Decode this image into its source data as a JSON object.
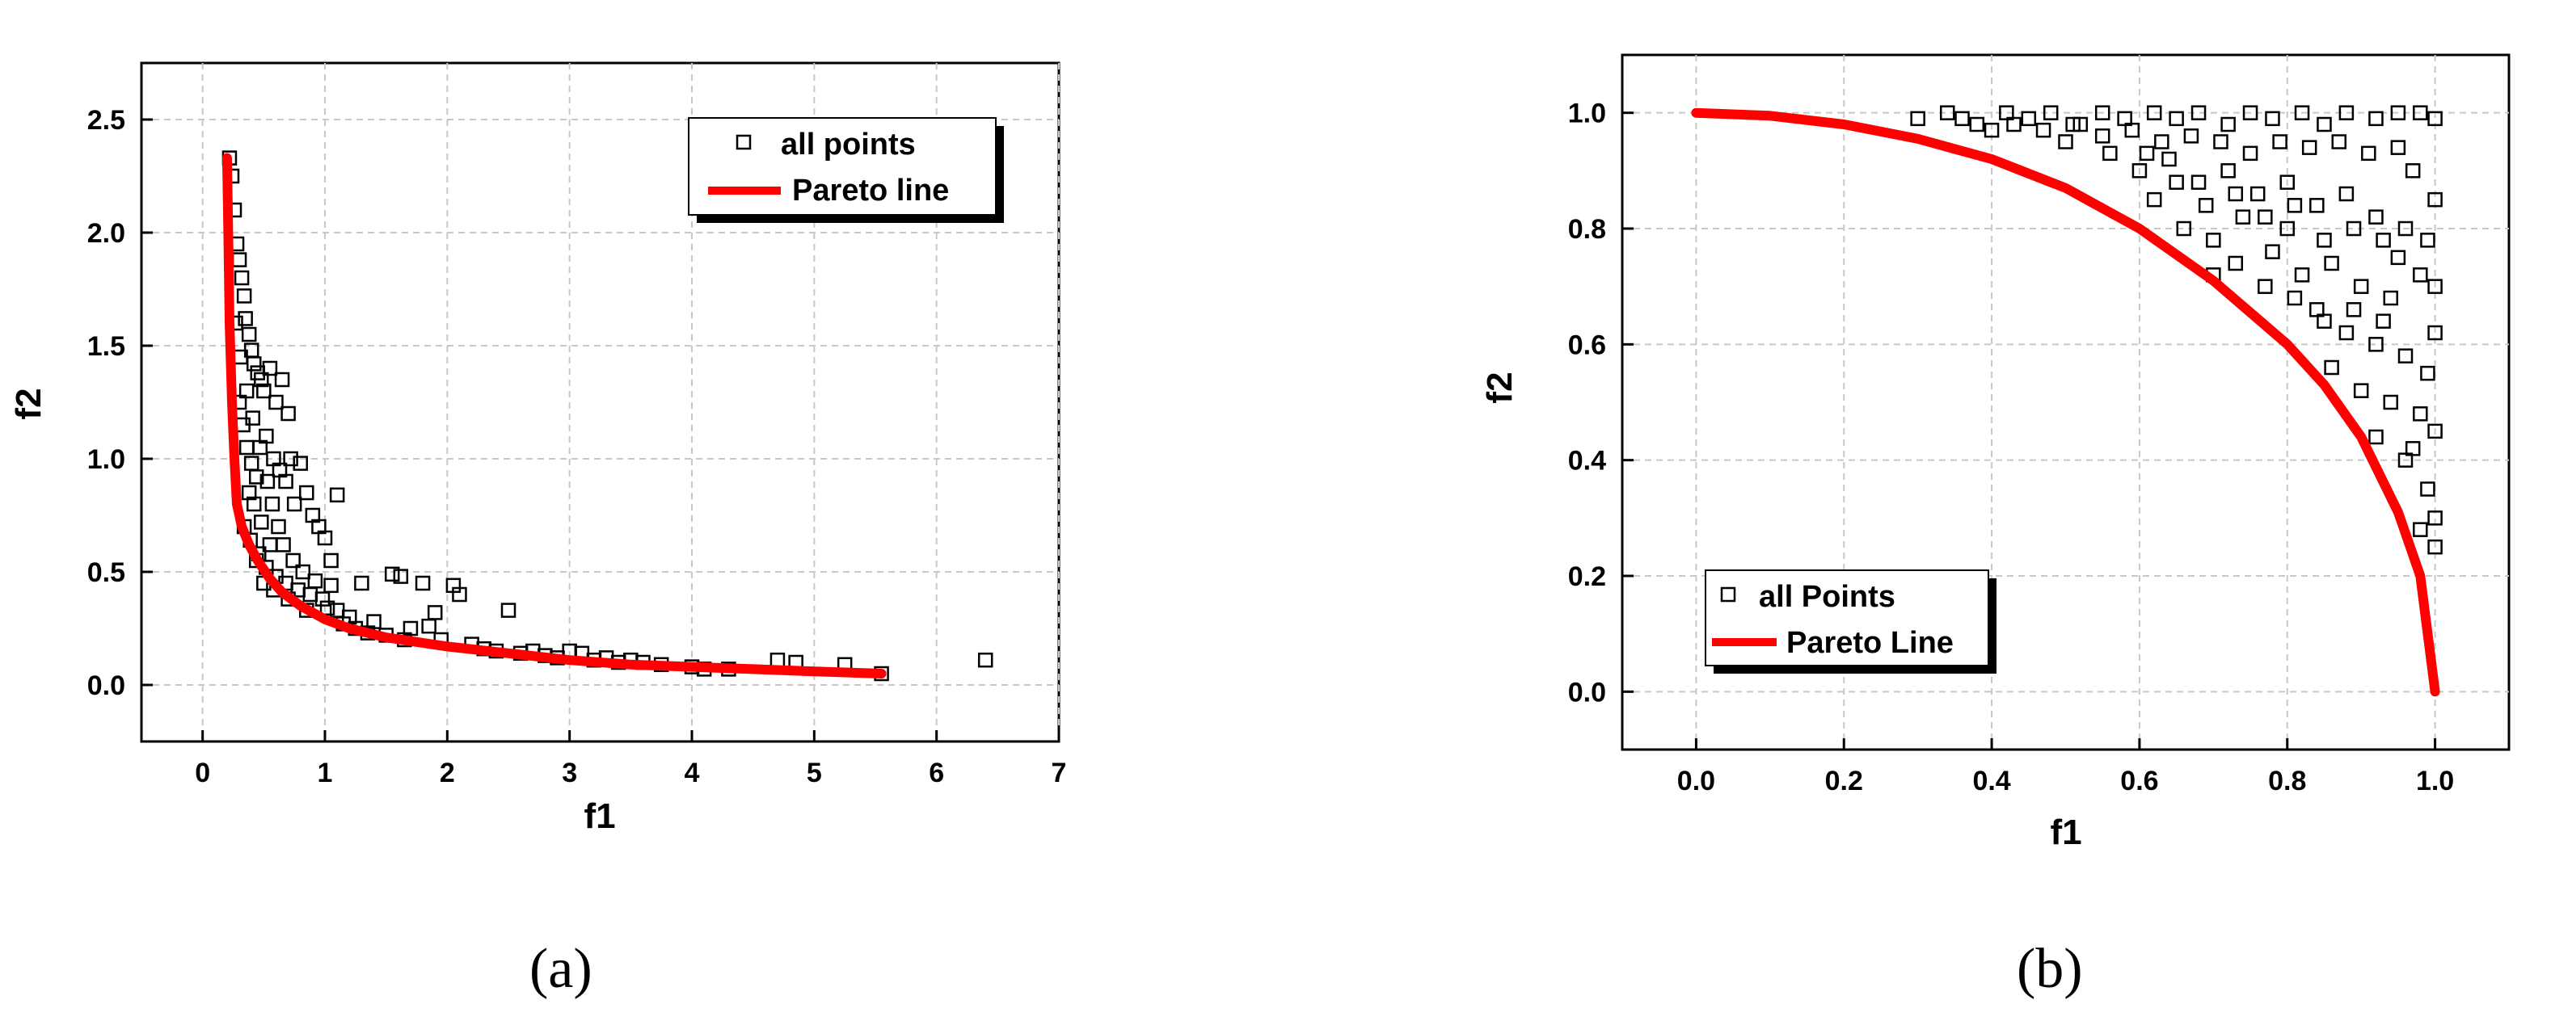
{
  "figure": {
    "label_a": "(a)",
    "label_b": "(b)"
  },
  "colors": {
    "points_stroke": "#000000",
    "pareto_line": "#ff0000",
    "grid": "#c8c8c8"
  },
  "chart_data": [
    {
      "type": "scatter",
      "panel": "a",
      "xlabel": "f1",
      "ylabel": "f2",
      "xlim": [
        -0.5,
        7
      ],
      "ylim": [
        -0.25,
        2.75
      ],
      "xticks": [
        0,
        1,
        2,
        3,
        4,
        5,
        6,
        7
      ],
      "yticks": [
        0.0,
        0.5,
        1.0,
        1.5,
        2.0,
        2.5
      ],
      "xtick_labels": [
        "0",
        "1",
        "2",
        "3",
        "4",
        "5",
        "6",
        "7"
      ],
      "ytick_labels": [
        "0.0",
        "0.5",
        "1.0",
        "1.5",
        "2.0",
        "2.5"
      ],
      "grid": true,
      "legend": {
        "position": "top-right",
        "entries": [
          "all points",
          "Pareto line"
        ]
      },
      "series": [
        {
          "name": "all points",
          "marker": "open-square",
          "points": [
            [
              0.22,
              2.33
            ],
            [
              0.24,
              2.25
            ],
            [
              0.26,
              2.1
            ],
            [
              0.28,
              1.95
            ],
            [
              0.3,
              1.88
            ],
            [
              0.32,
              1.8
            ],
            [
              0.34,
              1.72
            ],
            [
              0.35,
              1.62
            ],
            [
              0.38,
              1.55
            ],
            [
              0.4,
              1.48
            ],
            [
              0.42,
              1.42
            ],
            [
              0.45,
              1.38
            ],
            [
              0.48,
              1.35
            ],
            [
              0.3,
              1.25
            ],
            [
              0.33,
              1.15
            ],
            [
              0.36,
              1.05
            ],
            [
              0.4,
              0.98
            ],
            [
              0.44,
              0.92
            ],
            [
              0.5,
              1.3
            ],
            [
              0.55,
              1.4
            ],
            [
              0.6,
              1.25
            ],
            [
              0.65,
              1.35
            ],
            [
              0.7,
              1.2
            ],
            [
              0.52,
              1.1
            ],
            [
              0.58,
              1.0
            ],
            [
              0.63,
              0.95
            ],
            [
              0.68,
              0.9
            ],
            [
              0.72,
              1.0
            ],
            [
              0.8,
              0.98
            ],
            [
              0.85,
              0.85
            ],
            [
              0.9,
              0.75
            ],
            [
              0.95,
              0.7
            ],
            [
              1.0,
              0.65
            ],
            [
              1.1,
              0.84
            ],
            [
              1.05,
              0.55
            ],
            [
              0.75,
              0.8
            ],
            [
              0.62,
              0.7
            ],
            [
              0.55,
              0.62
            ],
            [
              0.48,
              0.72
            ],
            [
              0.42,
              0.8
            ],
            [
              0.38,
              0.85
            ],
            [
              0.46,
              0.58
            ],
            [
              0.52,
              0.52
            ],
            [
              0.6,
              0.48
            ],
            [
              0.68,
              0.45
            ],
            [
              0.78,
              0.42
            ],
            [
              0.88,
              0.4
            ],
            [
              0.98,
              0.38
            ],
            [
              1.05,
              0.44
            ],
            [
              1.1,
              0.33
            ],
            [
              1.2,
              0.3
            ],
            [
              1.3,
              0.45
            ],
            [
              1.4,
              0.28
            ],
            [
              1.55,
              0.49
            ],
            [
              1.62,
              0.48
            ],
            [
              1.7,
              0.25
            ],
            [
              1.8,
              0.45
            ],
            [
              1.85,
              0.26
            ],
            [
              1.9,
              0.32
            ],
            [
              2.05,
              0.44
            ],
            [
              2.1,
              0.4
            ],
            [
              1.95,
              0.2
            ],
            [
              2.2,
              0.18
            ],
            [
              2.3,
              0.16
            ],
            [
              2.4,
              0.15
            ],
            [
              2.5,
              0.33
            ],
            [
              2.6,
              0.14
            ],
            [
              2.7,
              0.15
            ],
            [
              2.8,
              0.13
            ],
            [
              2.9,
              0.12
            ],
            [
              3.0,
              0.15
            ],
            [
              3.1,
              0.14
            ],
            [
              3.2,
              0.11
            ],
            [
              3.3,
              0.12
            ],
            [
              3.4,
              0.1
            ],
            [
              3.5,
              0.11
            ],
            [
              3.6,
              0.1
            ],
            [
              3.75,
              0.09
            ],
            [
              4.0,
              0.08
            ],
            [
              4.1,
              0.07
            ],
            [
              4.3,
              0.07
            ],
            [
              4.7,
              0.11
            ],
            [
              4.85,
              0.1
            ],
            [
              5.25,
              0.09
            ],
            [
              5.55,
              0.05
            ],
            [
              6.4,
              0.11
            ],
            [
              0.27,
              1.6
            ],
            [
              0.31,
              1.45
            ],
            [
              0.36,
              1.3
            ],
            [
              0.41,
              1.18
            ],
            [
              0.47,
              1.05
            ],
            [
              0.53,
              0.9
            ],
            [
              0.57,
              0.8
            ],
            [
              0.66,
              0.62
            ],
            [
              0.74,
              0.55
            ],
            [
              0.82,
              0.5
            ],
            [
              0.92,
              0.46
            ],
            [
              1.02,
              0.34
            ],
            [
              1.15,
              0.27
            ],
            [
              1.25,
              0.25
            ],
            [
              0.34,
              0.7
            ],
            [
              0.39,
              0.64
            ],
            [
              0.44,
              0.55
            ],
            [
              0.5,
              0.45
            ],
            [
              0.58,
              0.42
            ],
            [
              0.7,
              0.38
            ],
            [
              0.85,
              0.33
            ],
            [
              1.35,
              0.23
            ],
            [
              1.5,
              0.22
            ],
            [
              1.65,
              0.2
            ]
          ]
        },
        {
          "name": "Pareto line",
          "style": "line",
          "points": [
            [
              0.2,
              2.33
            ],
            [
              0.21,
              2.0
            ],
            [
              0.22,
              1.6
            ],
            [
              0.24,
              1.25
            ],
            [
              0.26,
              1.0
            ],
            [
              0.28,
              0.8
            ],
            [
              0.32,
              0.7
            ],
            [
              0.38,
              0.62
            ],
            [
              0.45,
              0.55
            ],
            [
              0.55,
              0.47
            ],
            [
              0.65,
              0.41
            ],
            [
              0.8,
              0.35
            ],
            [
              1.0,
              0.29
            ],
            [
              1.2,
              0.25
            ],
            [
              1.5,
              0.21
            ],
            [
              2.0,
              0.17
            ],
            [
              2.5,
              0.14
            ],
            [
              3.0,
              0.11
            ],
            [
              3.5,
              0.09
            ],
            [
              4.0,
              0.08
            ],
            [
              4.5,
              0.07
            ],
            [
              5.0,
              0.06
            ],
            [
              5.55,
              0.05
            ]
          ]
        }
      ]
    },
    {
      "type": "scatter",
      "panel": "b",
      "xlabel": "f1",
      "ylabel": "f2",
      "xlim": [
        -0.1,
        1.1
      ],
      "ylim": [
        -0.1,
        1.1
      ],
      "xticks": [
        0.0,
        0.2,
        0.4,
        0.6,
        0.8,
        1.0
      ],
      "yticks": [
        0.0,
        0.2,
        0.4,
        0.6,
        0.8,
        1.0
      ],
      "xtick_labels": [
        "0.0",
        "0.2",
        "0.4",
        "0.6",
        "0.8",
        "1.0"
      ],
      "ytick_labels": [
        "0.0",
        "0.2",
        "0.4",
        "0.6",
        "0.8",
        "1.0"
      ],
      "grid": true,
      "legend": {
        "position": "bottom-left",
        "entries": [
          "all Points",
          "Pareto Line"
        ]
      },
      "series": [
        {
          "name": "all Points",
          "marker": "open-square",
          "points": [
            [
              0.3,
              0.99
            ],
            [
              0.34,
              1.0
            ],
            [
              0.38,
              0.98
            ],
            [
              0.42,
              1.0
            ],
            [
              0.45,
              0.99
            ],
            [
              0.48,
              1.0
            ],
            [
              0.52,
              0.98
            ],
            [
              0.55,
              1.0
            ],
            [
              0.58,
              0.99
            ],
            [
              0.62,
              1.0
            ],
            [
              0.65,
              0.99
            ],
            [
              0.68,
              1.0
            ],
            [
              0.72,
              0.98
            ],
            [
              0.75,
              1.0
            ],
            [
              0.78,
              0.99
            ],
            [
              0.82,
              1.0
            ],
            [
              0.85,
              0.98
            ],
            [
              0.88,
              1.0
            ],
            [
              0.92,
              0.99
            ],
            [
              0.95,
              1.0
            ],
            [
              0.98,
              1.0
            ],
            [
              1.0,
              0.99
            ],
            [
              0.5,
              0.95
            ],
            [
              0.56,
              0.93
            ],
            [
              0.6,
              0.9
            ],
            [
              0.64,
              0.92
            ],
            [
              0.68,
              0.88
            ],
            [
              0.72,
              0.9
            ],
            [
              0.76,
              0.86
            ],
            [
              0.8,
              0.88
            ],
            [
              0.84,
              0.84
            ],
            [
              0.88,
              0.86
            ],
            [
              0.92,
              0.82
            ],
            [
              0.96,
              0.8
            ],
            [
              1.0,
              0.85
            ],
            [
              0.62,
              0.85
            ],
            [
              0.66,
              0.8
            ],
            [
              0.7,
              0.78
            ],
            [
              0.74,
              0.82
            ],
            [
              0.78,
              0.76
            ],
            [
              0.82,
              0.72
            ],
            [
              0.86,
              0.74
            ],
            [
              0.9,
              0.7
            ],
            [
              0.94,
              0.68
            ],
            [
              0.98,
              0.72
            ],
            [
              0.8,
              0.8
            ],
            [
              0.84,
              0.66
            ],
            [
              0.88,
              0.62
            ],
            [
              0.92,
              0.6
            ],
            [
              0.96,
              0.58
            ],
            [
              1.0,
              0.62
            ],
            [
              0.86,
              0.56
            ],
            [
              0.9,
              0.52
            ],
            [
              0.94,
              0.5
            ],
            [
              0.98,
              0.48
            ],
            [
              1.0,
              0.45
            ],
            [
              0.92,
              0.44
            ],
            [
              0.96,
              0.4
            ],
            [
              0.99,
              0.35
            ],
            [
              1.0,
              0.3
            ],
            [
              0.98,
              0.28
            ],
            [
              1.0,
              0.25
            ],
            [
              0.97,
              0.42
            ],
            [
              0.99,
              0.55
            ],
            [
              1.0,
              0.7
            ],
            [
              0.99,
              0.78
            ],
            [
              0.97,
              0.9
            ],
            [
              0.95,
              0.94
            ],
            [
              0.91,
              0.93
            ],
            [
              0.87,
              0.95
            ],
            [
              0.83,
              0.94
            ],
            [
              0.79,
              0.95
            ],
            [
              0.75,
              0.93
            ],
            [
              0.71,
              0.95
            ],
            [
              0.67,
              0.96
            ],
            [
              0.63,
              0.95
            ],
            [
              0.59,
              0.97
            ],
            [
              0.55,
              0.96
            ],
            [
              0.51,
              0.98
            ],
            [
              0.47,
              0.97
            ],
            [
              0.43,
              0.98
            ],
            [
              0.4,
              0.97
            ],
            [
              0.36,
              0.99
            ],
            [
              0.7,
              0.72
            ],
            [
              0.73,
              0.74
            ],
            [
              0.77,
              0.7
            ],
            [
              0.81,
              0.68
            ],
            [
              0.85,
              0.64
            ],
            [
              0.89,
              0.66
            ],
            [
              0.93,
              0.64
            ],
            [
              0.95,
              0.75
            ],
            [
              0.93,
              0.78
            ],
            [
              0.89,
              0.8
            ],
            [
              0.85,
              0.78
            ],
            [
              0.81,
              0.84
            ],
            [
              0.77,
              0.82
            ],
            [
              0.73,
              0.86
            ],
            [
              0.69,
              0.84
            ],
            [
              0.65,
              0.88
            ],
            [
              0.61,
              0.93
            ]
          ]
        },
        {
          "name": "Pareto Line",
          "style": "line",
          "points": [
            [
              0.0,
              1.0
            ],
            [
              0.1,
              0.995
            ],
            [
              0.2,
              0.98
            ],
            [
              0.3,
              0.955
            ],
            [
              0.4,
              0.92
            ],
            [
              0.5,
              0.87
            ],
            [
              0.6,
              0.8
            ],
            [
              0.7,
              0.71
            ],
            [
              0.8,
              0.6
            ],
            [
              0.85,
              0.53
            ],
            [
              0.9,
              0.44
            ],
            [
              0.95,
              0.31
            ],
            [
              0.98,
              0.2
            ],
            [
              1.0,
              0.0
            ]
          ]
        }
      ]
    }
  ]
}
